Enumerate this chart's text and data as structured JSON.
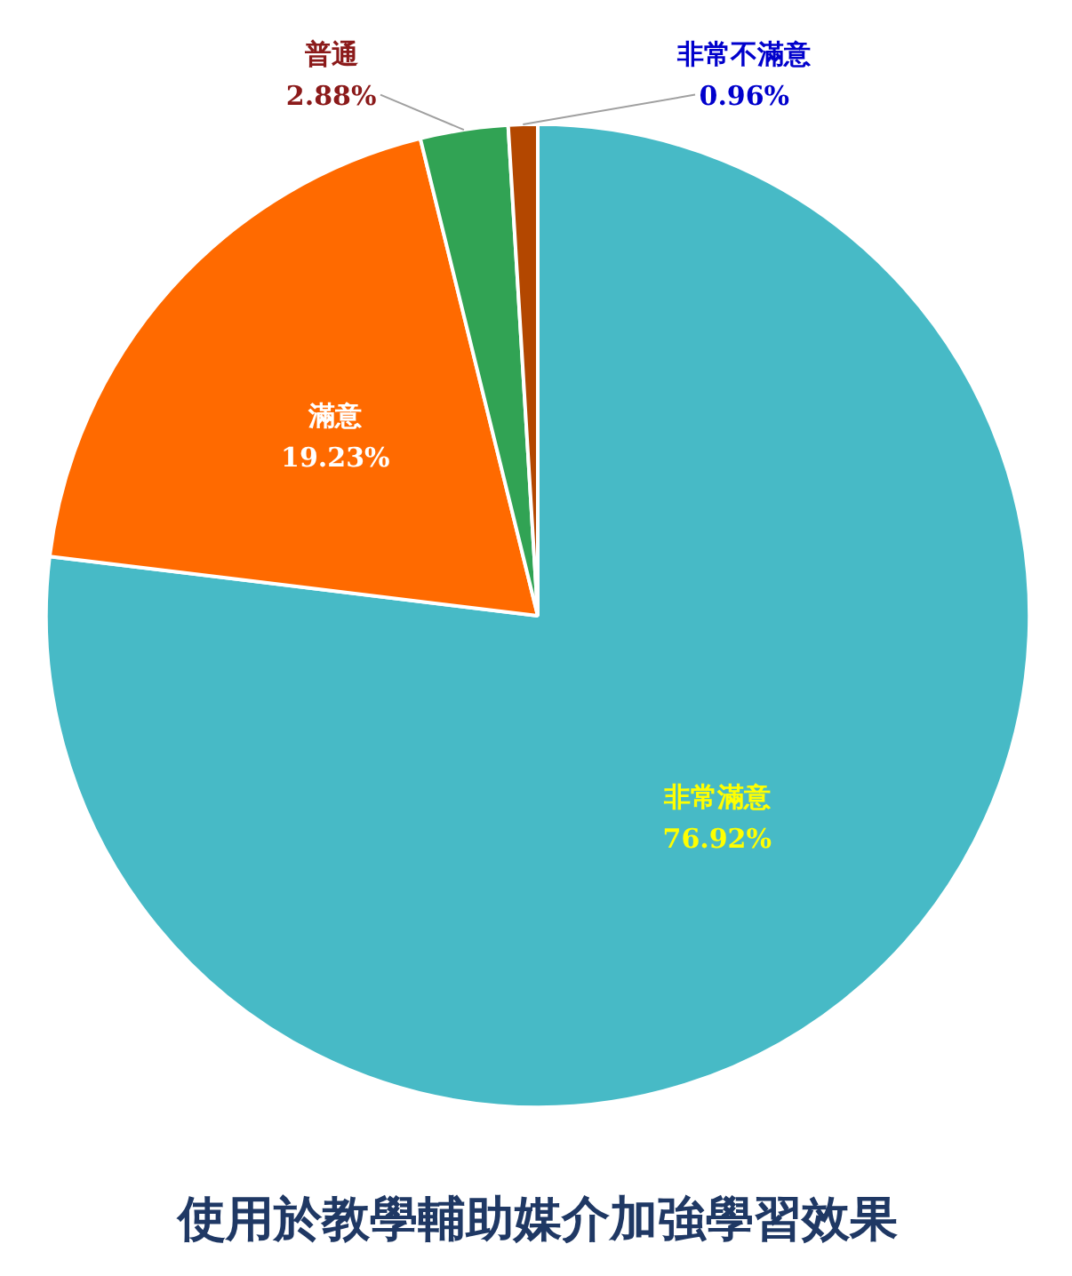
{
  "chart_data": {
    "type": "pie",
    "title": "使用於教學輔助媒介加強學習效果",
    "categories": [
      "非常滿意",
      "滿意",
      "普通",
      "非常不滿意"
    ],
    "values": [
      76.92,
      19.23,
      2.88,
      0.96
    ],
    "colors": [
      "#47bac6",
      "#ff6a00",
      "#31a354",
      "#b34700"
    ],
    "value_labels": [
      "76.92%",
      "19.23%",
      "2.88%",
      "0.96%"
    ]
  }
}
